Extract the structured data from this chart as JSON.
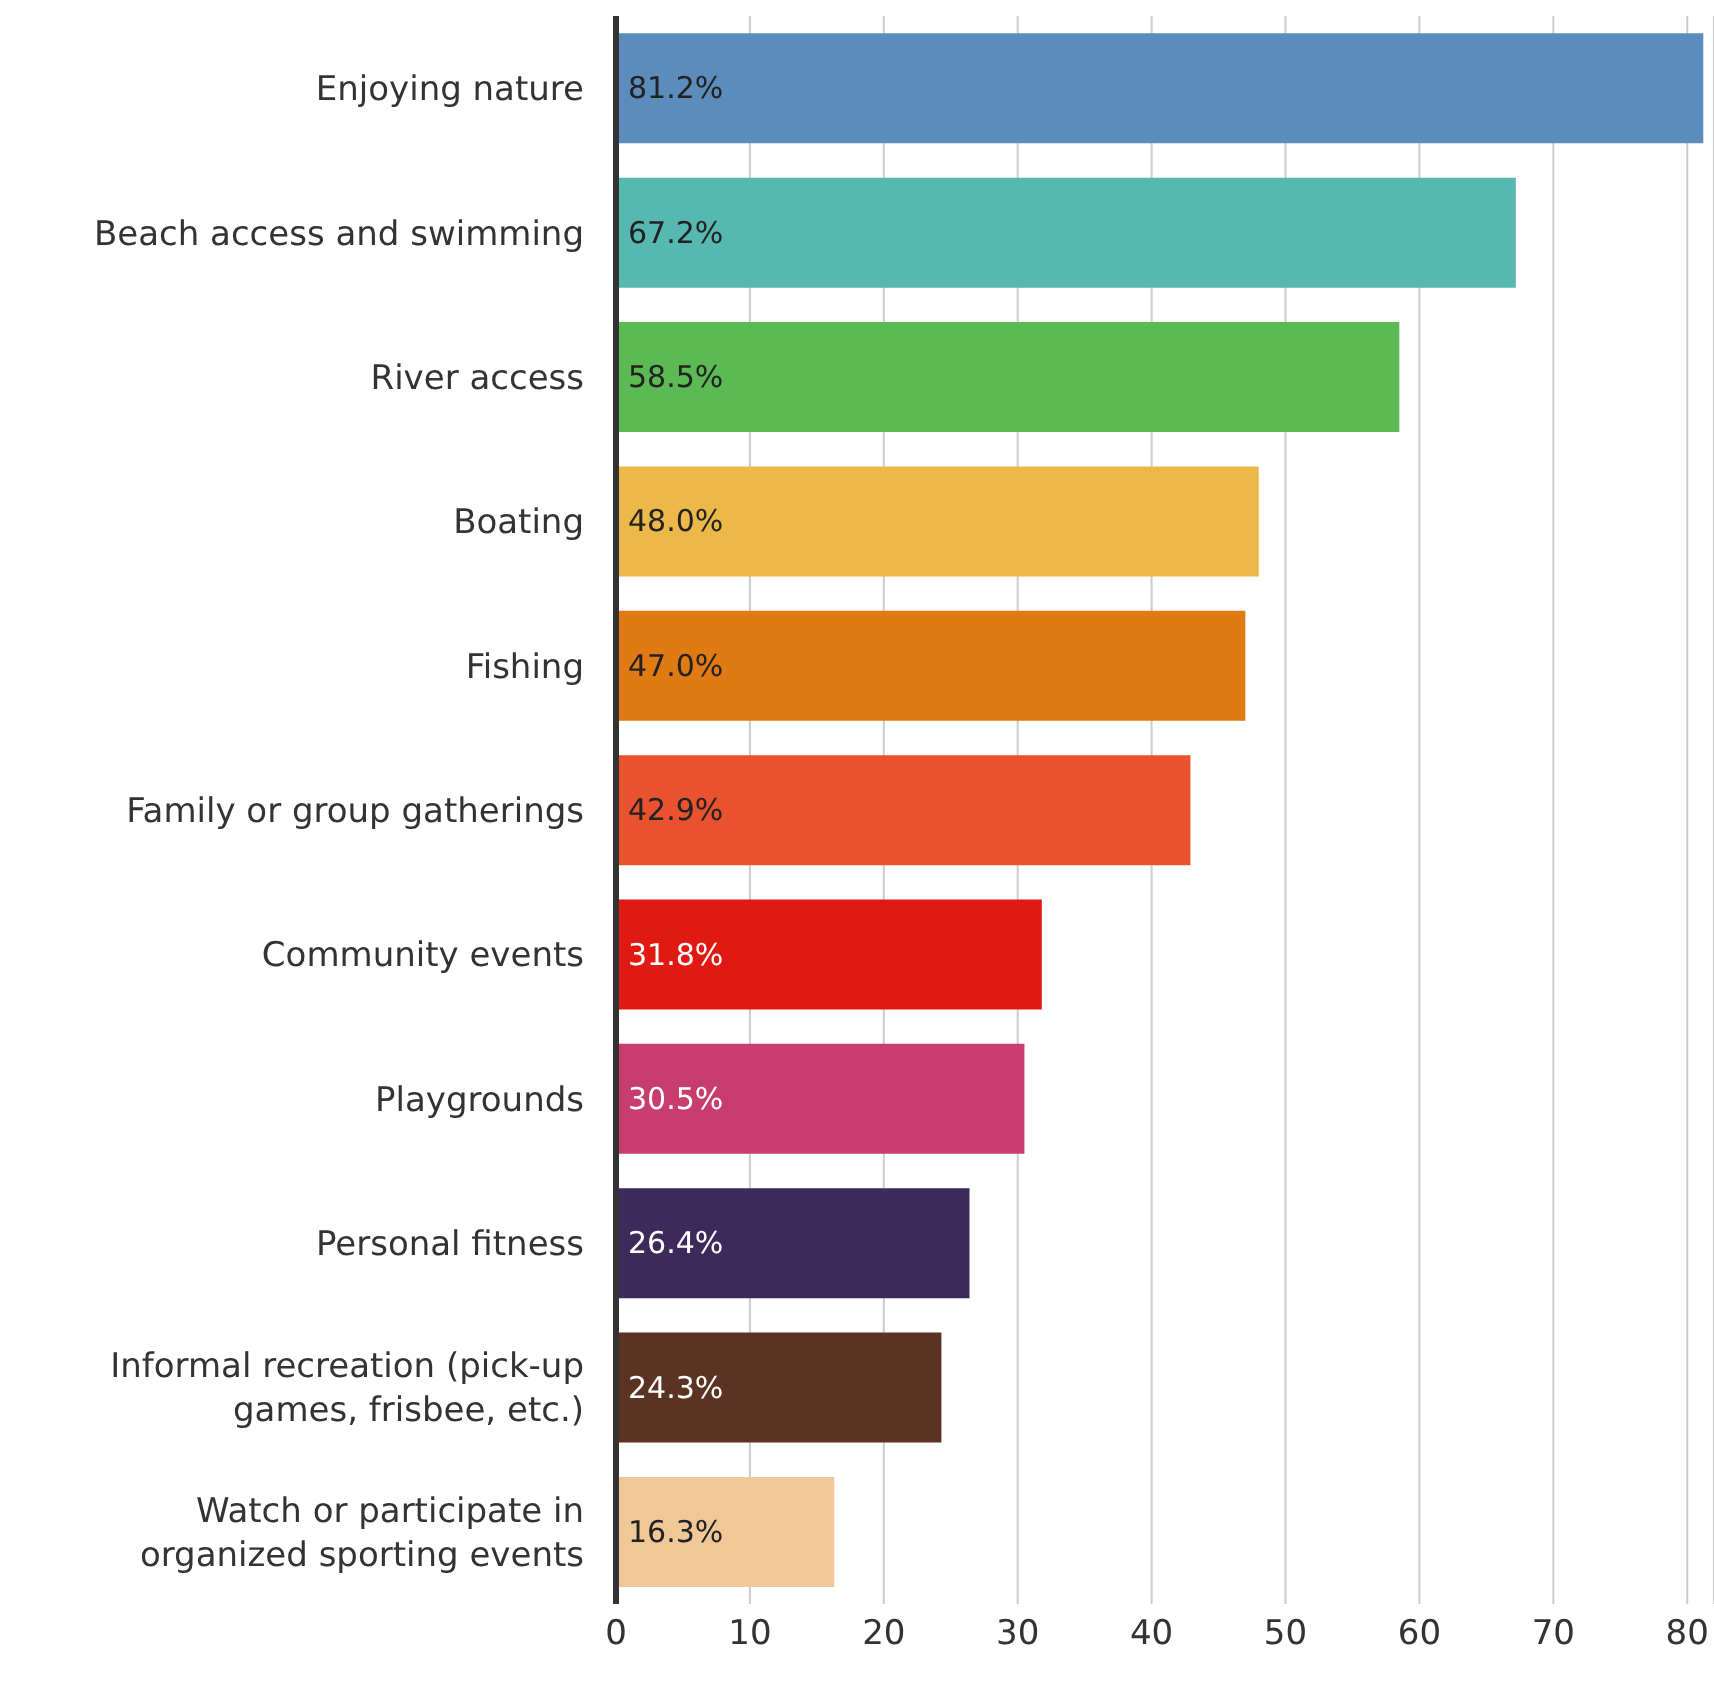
{
  "chart_data": {
    "type": "bar",
    "orientation": "horizontal",
    "categories": [
      "Enjoying nature",
      "Beach access and swimming",
      "River access",
      "Boating",
      "Fishing",
      "Family or group gatherings",
      "Community events",
      "Playgrounds",
      "Personal fitness",
      "Informal recreation (pick-up games, frisbee, etc.)",
      "Watch or participate in organized sporting events"
    ],
    "values": [
      81.2,
      67.2,
      58.5,
      48.0,
      47.0,
      42.9,
      31.8,
      30.5,
      26.4,
      24.3,
      16.3
    ],
    "value_labels": [
      "81.2%",
      "67.2%",
      "58.5%",
      "48.0%",
      "47.0%",
      "42.9%",
      "31.8%",
      "30.5%",
      "26.4%",
      "24.3%",
      "16.3%"
    ],
    "colors": [
      "#5b8cbb",
      "#56b8b0",
      "#5cba55",
      "#ecb84a",
      "#e07a12",
      "#e8522e",
      "#e01a12",
      "#c63d6e",
      "#3d2a5a",
      "#5a3322",
      "#f0c898"
    ],
    "xlim": [
      0,
      82
    ],
    "xticks": [
      0,
      10,
      20,
      30,
      40,
      50,
      60,
      70,
      80
    ],
    "grid": "x"
  }
}
